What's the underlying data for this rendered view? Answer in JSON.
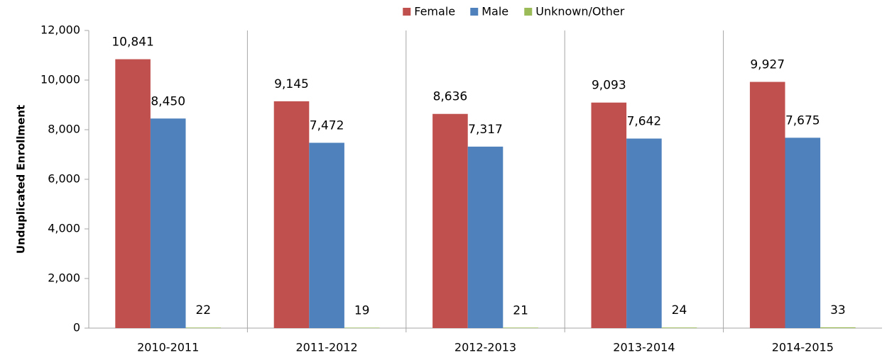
{
  "chart_data": {
    "type": "bar",
    "y_label": "Unduplicated Enrollment",
    "categories": [
      "2010-2011",
      "2011-2012",
      "2012-2013",
      "2013-2014",
      "2014-2015"
    ],
    "series": [
      {
        "name": "Female",
        "color": "#c0504d",
        "values": [
          10841,
          9145,
          8636,
          9093,
          9927
        ],
        "value_labels": [
          "10,841",
          "9,145",
          "8,636",
          "9,093",
          "9,927"
        ]
      },
      {
        "name": "Male",
        "color": "#4f81bd",
        "values": [
          8450,
          7472,
          7317,
          7642,
          7675
        ],
        "value_labels": [
          "8,450",
          "7,472",
          "7,317",
          "7,642",
          "7,675"
        ]
      },
      {
        "name": "Unknown/Other",
        "color": "#9bbb59",
        "values": [
          22,
          19,
          21,
          24,
          33
        ]
      }
    ],
    "ylim": [
      0,
      12000
    ],
    "yticks": [
      0,
      {
        "value": 2000,
        "label": "2,000"
      },
      {
        "value": 4000,
        "label": "4,000"
      },
      {
        "value": 6000,
        "label": "6,000"
      },
      {
        "value": 8000,
        "label": "8,000"
      },
      {
        "value": 10000,
        "label": "10,000"
      },
      {
        "value": 12000,
        "label": "12,000"
      }
    ],
    "legend": "top"
  }
}
